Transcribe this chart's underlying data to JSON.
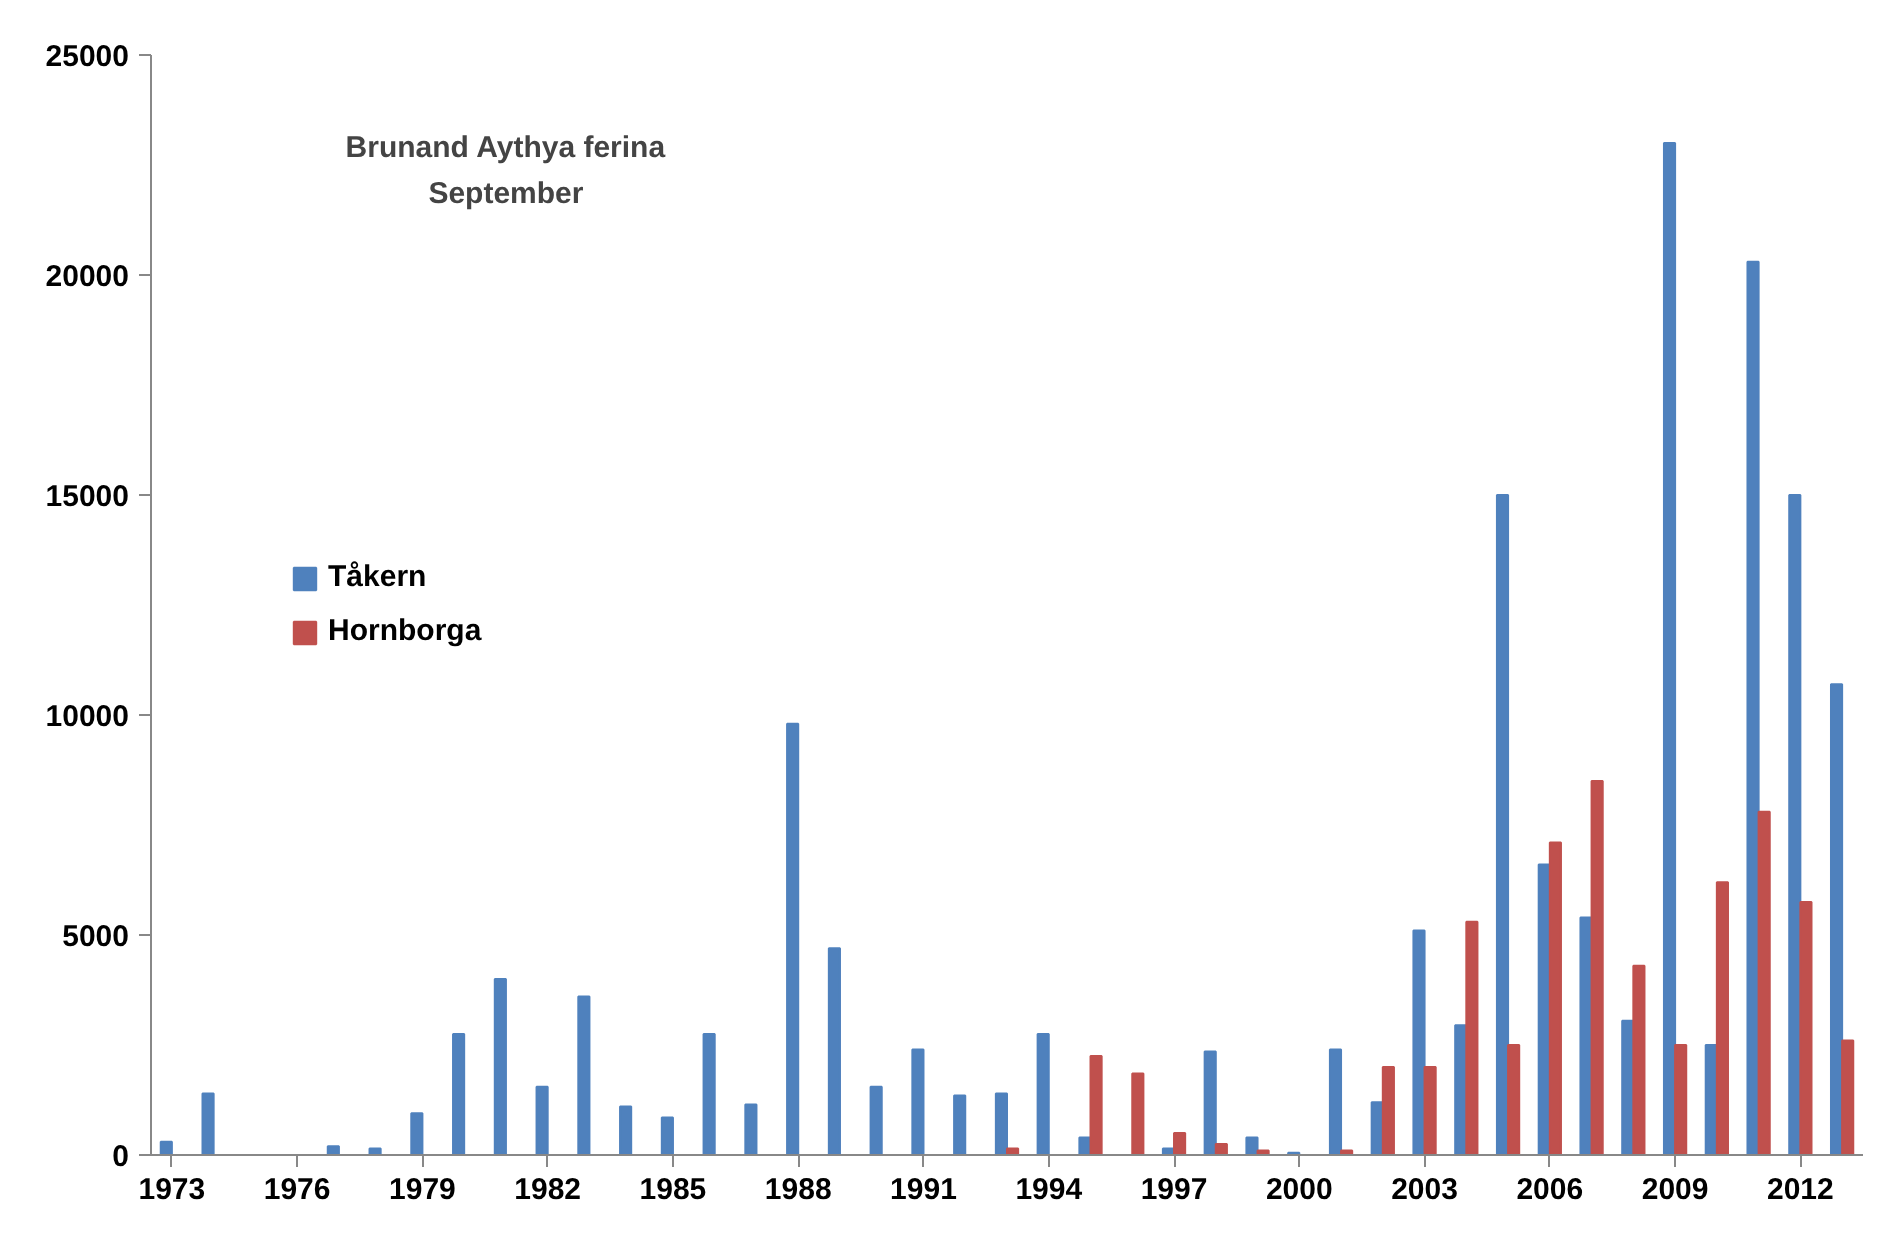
{
  "chart_data": {
    "type": "bar",
    "title": "Brunand Aythya ferina",
    "subtitle": "September",
    "categories": [
      "1973",
      null,
      null,
      "1976",
      null,
      null,
      "1979",
      null,
      null,
      "1982",
      null,
      null,
      "1985",
      null,
      null,
      "1988",
      null,
      null,
      "1991",
      null,
      null,
      "1994",
      null,
      null,
      "1997",
      null,
      null,
      "2000",
      null,
      null,
      "2003",
      null,
      null,
      "2006",
      null,
      null,
      "2009",
      null,
      null,
      "2012",
      null
    ],
    "series": [
      {
        "name": "Tåkern",
        "color": "#4f81bd",
        "values": [
          300,
          1400,
          0,
          null,
          200,
          150,
          950,
          2750,
          4000,
          1550,
          3600,
          1100,
          850,
          2750,
          1150,
          9800,
          4700,
          1550,
          2400,
          1350,
          1400,
          2750,
          400,
          null,
          150,
          2350,
          400,
          50,
          2400,
          1200,
          5100,
          2950,
          15000,
          6600,
          5400,
          3050,
          23000,
          2500,
          20300,
          15000,
          10700
        ]
      },
      {
        "name": "Hornborga",
        "color": "#c0504d",
        "values": [
          null,
          null,
          null,
          null,
          null,
          null,
          null,
          null,
          null,
          null,
          null,
          null,
          null,
          null,
          null,
          null,
          null,
          null,
          null,
          null,
          150,
          0,
          2250,
          1850,
          500,
          250,
          100,
          null,
          100,
          2000,
          2000,
          5300,
          2500,
          7100,
          8500,
          4300,
          2500,
          6200,
          7800,
          5750,
          2600
        ]
      }
    ],
    "ylim": [
      0,
      25000
    ],
    "yticks": [
      0,
      5000,
      10000,
      15000,
      20000,
      25000
    ],
    "grid": false,
    "legend": "left"
  }
}
